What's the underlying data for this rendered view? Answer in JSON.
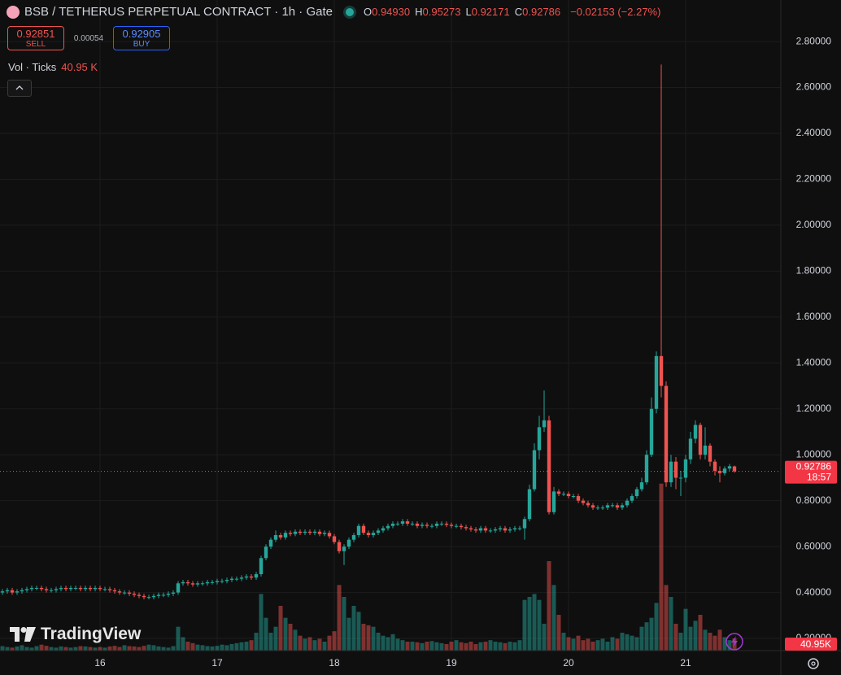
{
  "header": {
    "symbol": "BSB / TETHERUS PERPETUAL CONTRACT · 1h · Gate",
    "ohlc": [
      {
        "key": "O",
        "value": "0.94930"
      },
      {
        "key": "H",
        "value": "0.95273"
      },
      {
        "key": "L",
        "value": "0.92171"
      },
      {
        "key": "C",
        "value": "0.92786"
      }
    ],
    "change": "−0.02153 (−2.27%)"
  },
  "trade": {
    "sell_price": "0.92851",
    "sell": "SELL",
    "spread": "0.00054",
    "buy_price": "0.92905",
    "buy": "BUY"
  },
  "volume_legend": {
    "label": "Vol · Ticks",
    "value": "40.95 K"
  },
  "brand": "TradingView",
  "chart_data": {
    "type": "candlestick",
    "up_color": "#26a69a",
    "down_color": "#ef5350",
    "grid": true,
    "categories": [
      null,
      null,
      null,
      null,
      null,
      null,
      null,
      null,
      null,
      null,
      null,
      null,
      null,
      null,
      null,
      null,
      null,
      null,
      null,
      null,
      "16",
      null,
      null,
      null,
      null,
      null,
      null,
      null,
      null,
      null,
      null,
      null,
      null,
      null,
      null,
      null,
      null,
      null,
      null,
      null,
      null,
      null,
      null,
      null,
      "17",
      null,
      null,
      null,
      null,
      null,
      null,
      null,
      null,
      null,
      null,
      null,
      null,
      null,
      null,
      null,
      null,
      null,
      null,
      null,
      null,
      null,
      null,
      null,
      "18",
      null,
      null,
      null,
      null,
      null,
      null,
      null,
      null,
      null,
      null,
      null,
      null,
      null,
      null,
      null,
      null,
      null,
      null,
      null,
      null,
      null,
      null,
      null,
      "19",
      null,
      null,
      null,
      null,
      null,
      null,
      null,
      null,
      null,
      null,
      null,
      null,
      null,
      null,
      null,
      null,
      null,
      null,
      null,
      null,
      null,
      null,
      null,
      "20",
      null,
      null,
      null,
      null,
      null,
      null,
      null,
      null,
      null,
      null,
      null,
      null,
      null,
      null,
      null,
      null,
      null,
      null,
      null,
      null,
      null,
      null,
      null,
      "21",
      null,
      null,
      null,
      null,
      null,
      null,
      null,
      null,
      null,
      null
    ],
    "open": [
      0.4,
      0.405,
      0.41,
      0.4,
      0.405,
      0.41,
      0.415,
      0.42,
      0.42,
      0.415,
      0.41,
      0.41,
      0.415,
      0.42,
      0.415,
      0.42,
      0.42,
      0.415,
      0.42,
      0.415,
      0.42,
      0.415,
      0.415,
      0.41,
      0.405,
      0.4,
      0.4,
      0.395,
      0.39,
      0.385,
      0.38,
      0.38,
      0.385,
      0.39,
      0.39,
      0.395,
      0.4,
      0.44,
      0.445,
      0.44,
      0.435,
      0.44,
      0.44,
      0.445,
      0.445,
      0.45,
      0.45,
      0.455,
      0.46,
      0.46,
      0.465,
      0.47,
      0.465,
      0.48,
      0.55,
      0.6,
      0.63,
      0.65,
      0.64,
      0.66,
      0.655,
      0.665,
      0.66,
      0.665,
      0.66,
      0.665,
      0.655,
      0.66,
      0.645,
      0.62,
      0.58,
      0.6,
      0.63,
      0.65,
      0.69,
      0.66,
      0.65,
      0.66,
      0.67,
      0.68,
      0.69,
      0.7,
      0.7,
      0.71,
      0.7,
      0.7,
      0.69,
      0.695,
      0.69,
      0.69,
      0.7,
      0.7,
      0.695,
      0.69,
      0.69,
      0.685,
      0.68,
      0.675,
      0.67,
      0.68,
      0.67,
      0.67,
      0.675,
      0.68,
      0.67,
      0.675,
      0.68,
      0.68,
      0.72,
      0.85,
      1.02,
      1.12,
      1.15,
      0.75,
      0.84,
      0.83,
      0.83,
      0.82,
      0.82,
      0.8,
      0.79,
      0.78,
      0.77,
      0.77,
      0.77,
      0.78,
      0.78,
      0.77,
      0.78,
      0.8,
      0.82,
      0.85,
      0.88,
      1.0,
      1.2,
      1.43,
      1.3,
      0.88,
      0.97,
      0.9,
      0.9,
      0.98,
      1.07,
      1.13,
      1.0,
      1.04,
      0.97,
      0.93,
      0.92,
      0.94,
      0.9493
    ],
    "high": [
      0.415,
      0.42,
      0.42,
      0.415,
      0.42,
      0.425,
      0.43,
      0.43,
      0.43,
      0.425,
      0.42,
      0.425,
      0.43,
      0.43,
      0.43,
      0.43,
      0.43,
      0.43,
      0.43,
      0.43,
      0.43,
      0.425,
      0.425,
      0.42,
      0.415,
      0.41,
      0.41,
      0.405,
      0.4,
      0.395,
      0.39,
      0.395,
      0.4,
      0.4,
      0.405,
      0.41,
      0.45,
      0.455,
      0.455,
      0.45,
      0.45,
      0.45,
      0.455,
      0.455,
      0.46,
      0.46,
      0.465,
      0.47,
      0.47,
      0.475,
      0.48,
      0.48,
      0.49,
      0.56,
      0.61,
      0.64,
      0.67,
      0.66,
      0.67,
      0.67,
      0.675,
      0.675,
      0.675,
      0.675,
      0.675,
      0.675,
      0.67,
      0.67,
      0.655,
      0.63,
      0.61,
      0.64,
      0.66,
      0.7,
      0.7,
      0.67,
      0.67,
      0.68,
      0.69,
      0.7,
      0.71,
      0.71,
      0.72,
      0.72,
      0.71,
      0.71,
      0.705,
      0.705,
      0.7,
      0.71,
      0.71,
      0.71,
      0.705,
      0.7,
      0.7,
      0.695,
      0.69,
      0.685,
      0.69,
      0.69,
      0.68,
      0.685,
      0.69,
      0.69,
      0.685,
      0.69,
      0.69,
      0.73,
      0.87,
      1.05,
      1.17,
      1.28,
      1.17,
      0.86,
      0.85,
      0.84,
      0.84,
      0.83,
      0.83,
      0.81,
      0.8,
      0.79,
      0.78,
      0.78,
      0.79,
      0.79,
      0.79,
      0.79,
      0.81,
      0.83,
      0.86,
      0.9,
      1.02,
      1.25,
      1.45,
      2.7,
      1.32,
      1.0,
      0.99,
      0.93,
      1.0,
      1.1,
      1.15,
      1.14,
      1.12,
      1.05,
      0.98,
      0.95,
      0.95,
      0.96,
      0.95273
    ],
    "low": [
      0.39,
      0.395,
      0.39,
      0.39,
      0.395,
      0.4,
      0.405,
      0.41,
      0.405,
      0.4,
      0.4,
      0.4,
      0.405,
      0.405,
      0.405,
      0.41,
      0.405,
      0.405,
      0.405,
      0.405,
      0.405,
      0.405,
      0.4,
      0.395,
      0.39,
      0.39,
      0.385,
      0.38,
      0.375,
      0.37,
      0.37,
      0.37,
      0.375,
      0.38,
      0.38,
      0.385,
      0.39,
      0.43,
      0.43,
      0.425,
      0.425,
      0.43,
      0.43,
      0.435,
      0.435,
      0.44,
      0.44,
      0.445,
      0.45,
      0.45,
      0.455,
      0.455,
      0.455,
      0.47,
      0.54,
      0.59,
      0.62,
      0.63,
      0.63,
      0.645,
      0.645,
      0.65,
      0.65,
      0.65,
      0.65,
      0.645,
      0.645,
      0.635,
      0.61,
      0.57,
      0.52,
      0.59,
      0.62,
      0.64,
      0.65,
      0.64,
      0.64,
      0.65,
      0.66,
      0.67,
      0.68,
      0.69,
      0.69,
      0.69,
      0.69,
      0.68,
      0.68,
      0.68,
      0.68,
      0.68,
      0.69,
      0.685,
      0.68,
      0.68,
      0.675,
      0.67,
      0.665,
      0.66,
      0.66,
      0.66,
      0.66,
      0.66,
      0.665,
      0.66,
      0.66,
      0.665,
      0.67,
      0.63,
      0.71,
      0.84,
      0.98,
      1.1,
      0.74,
      0.74,
      0.82,
      0.82,
      0.81,
      0.81,
      0.79,
      0.78,
      0.77,
      0.76,
      0.76,
      0.76,
      0.76,
      0.77,
      0.76,
      0.76,
      0.77,
      0.79,
      0.81,
      0.84,
      0.87,
      0.99,
      1.18,
      1.25,
      0.86,
      0.86,
      0.85,
      0.82,
      0.88,
      0.96,
      1.05,
      0.98,
      0.98,
      0.95,
      0.91,
      0.88,
      0.91,
      0.93,
      0.92171
    ],
    "close": [
      0.405,
      0.41,
      0.4,
      0.405,
      0.41,
      0.415,
      0.42,
      0.42,
      0.415,
      0.41,
      0.41,
      0.415,
      0.42,
      0.415,
      0.42,
      0.42,
      0.415,
      0.42,
      0.415,
      0.42,
      0.415,
      0.415,
      0.41,
      0.405,
      0.4,
      0.4,
      0.395,
      0.39,
      0.385,
      0.38,
      0.38,
      0.385,
      0.39,
      0.39,
      0.395,
      0.4,
      0.44,
      0.445,
      0.44,
      0.435,
      0.44,
      0.44,
      0.445,
      0.445,
      0.45,
      0.45,
      0.455,
      0.46,
      0.46,
      0.465,
      0.47,
      0.465,
      0.48,
      0.55,
      0.6,
      0.63,
      0.65,
      0.64,
      0.66,
      0.655,
      0.665,
      0.66,
      0.665,
      0.66,
      0.665,
      0.655,
      0.66,
      0.645,
      0.62,
      0.58,
      0.6,
      0.63,
      0.65,
      0.69,
      0.66,
      0.65,
      0.66,
      0.67,
      0.68,
      0.69,
      0.7,
      0.7,
      0.71,
      0.7,
      0.7,
      0.69,
      0.695,
      0.69,
      0.69,
      0.7,
      0.7,
      0.695,
      0.69,
      0.69,
      0.685,
      0.68,
      0.675,
      0.67,
      0.68,
      0.67,
      0.67,
      0.675,
      0.68,
      0.67,
      0.675,
      0.68,
      0.68,
      0.72,
      0.85,
      1.02,
      1.12,
      1.15,
      0.75,
      0.84,
      0.83,
      0.83,
      0.82,
      0.82,
      0.8,
      0.79,
      0.78,
      0.77,
      0.77,
      0.77,
      0.78,
      0.78,
      0.77,
      0.78,
      0.8,
      0.82,
      0.85,
      0.88,
      1.0,
      1.2,
      1.43,
      1.3,
      0.88,
      0.97,
      0.9,
      0.9,
      0.98,
      1.07,
      1.13,
      1.0,
      1.04,
      0.97,
      0.93,
      0.92,
      0.94,
      0.95,
      0.92786
    ],
    "volume": [
      15,
      12,
      10,
      14,
      18,
      12,
      10,
      15,
      20,
      16,
      12,
      10,
      14,
      12,
      10,
      12,
      15,
      14,
      12,
      10,
      12,
      10,
      14,
      16,
      12,
      18,
      15,
      14,
      12,
      16,
      20,
      18,
      14,
      12,
      10,
      15,
      80,
      45,
      30,
      25,
      20,
      18,
      15,
      14,
      16,
      20,
      18,
      22,
      25,
      28,
      30,
      35,
      60,
      190,
      110,
      60,
      80,
      150,
      110,
      90,
      70,
      50,
      40,
      45,
      35,
      40,
      30,
      50,
      65,
      220,
      180,
      110,
      150,
      130,
      90,
      85,
      80,
      60,
      50,
      45,
      55,
      40,
      35,
      30,
      30,
      28,
      25,
      30,
      32,
      28,
      25,
      22,
      30,
      35,
      28,
      25,
      30,
      22,
      28,
      30,
      35,
      30,
      28,
      25,
      30,
      28,
      35,
      170,
      180,
      190,
      170,
      90,
      300,
      220,
      120,
      60,
      45,
      40,
      50,
      35,
      40,
      30,
      35,
      40,
      30,
      45,
      40,
      60,
      55,
      50,
      45,
      80,
      95,
      110,
      160,
      560,
      220,
      180,
      90,
      60,
      140,
      80,
      100,
      120,
      70,
      60,
      50,
      70,
      45,
      35,
      40.95
    ],
    "volume_last_label": "40.95K",
    "countdown": "18:57",
    "ylim": [
      0.147,
      2.981
    ],
    "volume_lim": [
      0,
      600
    ],
    "yticks": [
      {
        "value": 0.2,
        "label": "0.20000"
      },
      {
        "value": 0.4,
        "label": "0.40000"
      },
      {
        "value": 0.6,
        "label": "0.60000"
      },
      {
        "value": 0.8,
        "label": "0.80000"
      },
      {
        "value": 1.0,
        "label": "1.00000"
      },
      {
        "value": 1.2,
        "label": "1.20000"
      },
      {
        "value": 1.4,
        "label": "1.40000"
      },
      {
        "value": 1.6,
        "label": "1.60000"
      },
      {
        "value": 1.8,
        "label": "1.80000"
      },
      {
        "value": 2.0,
        "label": "2.00000"
      },
      {
        "value": 2.2,
        "label": "2.20000"
      },
      {
        "value": 2.4,
        "label": "2.40000"
      },
      {
        "value": 2.6,
        "label": "2.60000"
      },
      {
        "value": 2.8,
        "label": "2.80000"
      }
    ]
  }
}
